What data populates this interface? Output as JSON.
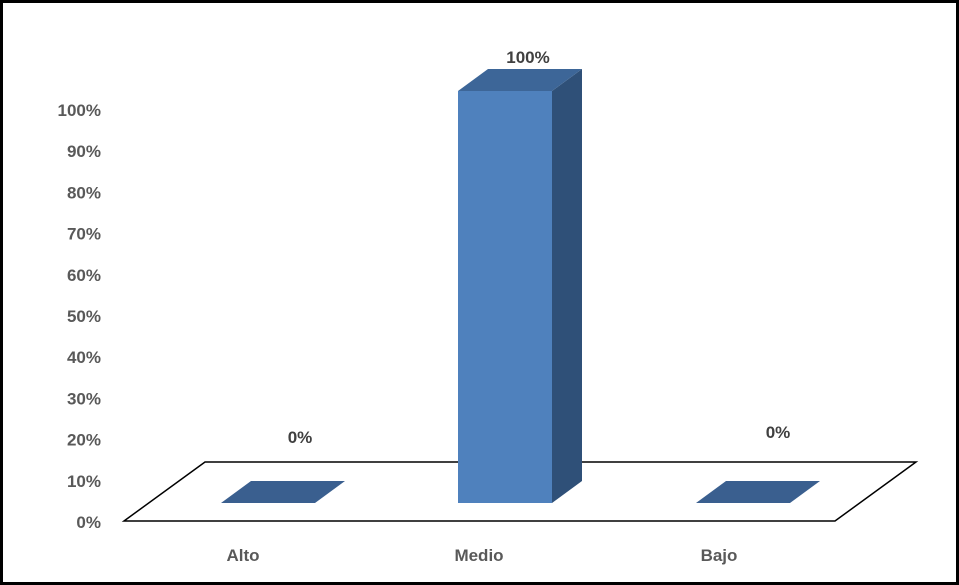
{
  "chart_data": {
    "type": "bar",
    "categories": [
      "Alto",
      "Medio",
      "Bajo"
    ],
    "values": [
      0,
      100,
      0
    ],
    "data_labels": [
      "0%",
      "100%",
      "0%"
    ],
    "y_ticks": [
      "0%",
      "10%",
      "20%",
      "30%",
      "40%",
      "50%",
      "60%",
      "70%",
      "80%",
      "90%",
      "100%"
    ],
    "ylim": [
      0,
      100
    ],
    "title": "",
    "xlabel": "",
    "ylabel": "",
    "grid": false,
    "legend": "none",
    "style": "3d-column",
    "colors": {
      "front": "#4F81BD",
      "side": "#2F5078",
      "top": "#3D6698",
      "zero_bar": "#3A5F8F",
      "frame": "#000000"
    }
  }
}
